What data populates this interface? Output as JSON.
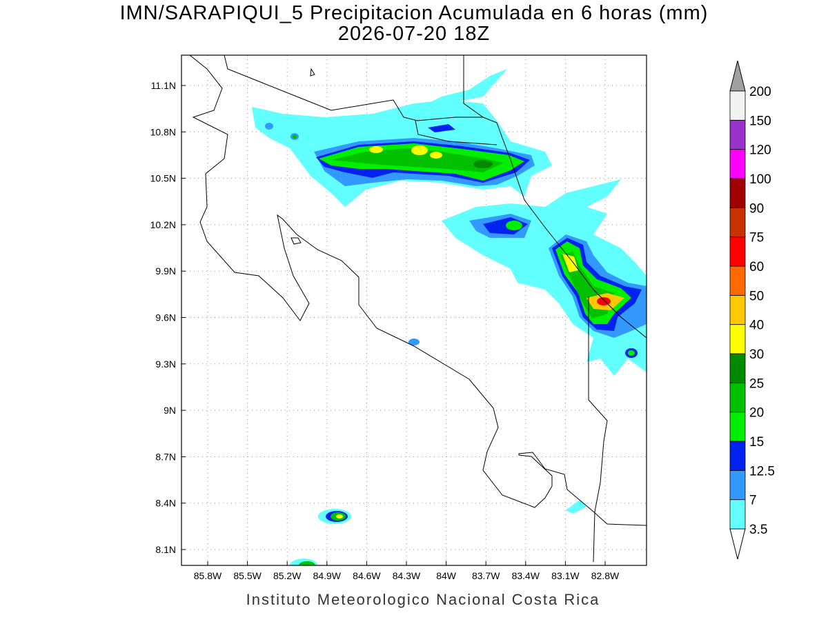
{
  "title": "IMN/SARAPIQUI_5 Precipitacion Acumulada en 6 horas (mm)",
  "subtitle": "2026-07-20 18Z",
  "map": {
    "lon_labels": [
      "85.8W",
      "85.5W",
      "85.2W",
      "84.9W",
      "84.6W",
      "84.3W",
      "84W",
      "83.7W",
      "83.4W",
      "83.1W",
      "82.8W"
    ],
    "lat_labels": [
      "11.1N",
      "10.8N",
      "10.5N",
      "10.2N",
      "9.9N",
      "9.6N",
      "9.3N",
      "9N",
      "8.7N",
      "8.4N",
      "8.1N"
    ],
    "grid": true
  },
  "colorbar": {
    "levels": [
      3.5,
      7,
      12.5,
      15,
      20,
      25,
      30,
      40,
      50,
      60,
      75,
      90,
      100,
      120,
      150,
      200
    ],
    "colors": [
      "#62ffff",
      "#3399ff",
      "#0022ee",
      "#00ee00",
      "#00c000",
      "#008a00",
      "#ffff00",
      "#ffc800",
      "#ff6a00",
      "#ff0000",
      "#c83200",
      "#a00000",
      "#ff00ff",
      "#9933cc",
      "#f2f2f2"
    ],
    "under_color": "#ffffff",
    "over_color": "#a0a0a0"
  },
  "footer": "Instituto Meteorologico Nacional Costa Rica"
}
